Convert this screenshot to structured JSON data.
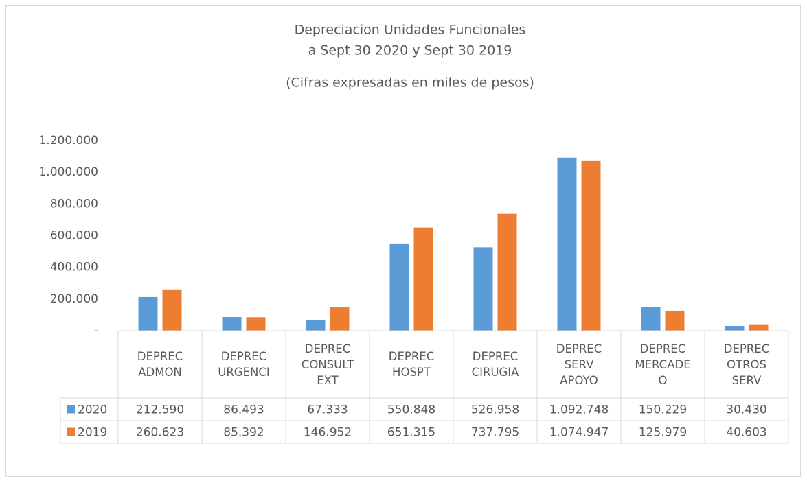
{
  "chart_data": {
    "type": "bar",
    "title": "Depreciacion Unidades Funcionales",
    "subtitle": "a  Sept 30 2020 y  Sept 30 2019",
    "note": "(Cifras expresadas en miles de pesos)",
    "categories": [
      "DEPREC ADMON",
      "DEPREC URGENCI",
      "DEPREC CONSULT EXT",
      "DEPREC HOSPT",
      "DEPREC CIRUGIA",
      "DEPREC SERV APOYO",
      "DEPREC MERCADEO",
      "DEPREC OTROS SERV"
    ],
    "series": [
      {
        "name": "2020",
        "color": "#5b9bd5",
        "values": [
          212590,
          86493,
          67333,
          550848,
          526958,
          1092748,
          150229,
          30430
        ],
        "value_labels": [
          "212.590",
          "86.493",
          "67.333",
          "550.848",
          "526.958",
          "1.092.748",
          "150.229",
          "30.430"
        ]
      },
      {
        "name": "2019",
        "color": "#ed7d31",
        "values": [
          260623,
          85392,
          146952,
          651315,
          737795,
          1074947,
          125979,
          40603
        ],
        "value_labels": [
          "260.623",
          "85.392",
          "146.952",
          "651.315",
          "737.795",
          "1.074.947",
          "125.979",
          "40.603"
        ]
      }
    ],
    "ylim": [
      0,
      1200000
    ],
    "yticks": [
      {
        "value": 0,
        "label": "-"
      },
      {
        "value": 200000,
        "label": "200.000"
      },
      {
        "value": 400000,
        "label": "400.000"
      },
      {
        "value": 600000,
        "label": "600.000"
      },
      {
        "value": 800000,
        "label": "800.000"
      },
      {
        "value": 1000000,
        "label": "1.000.000"
      },
      {
        "value": 1200000,
        "label": "1.200.000"
      }
    ],
    "grid": false,
    "data_table": true
  }
}
